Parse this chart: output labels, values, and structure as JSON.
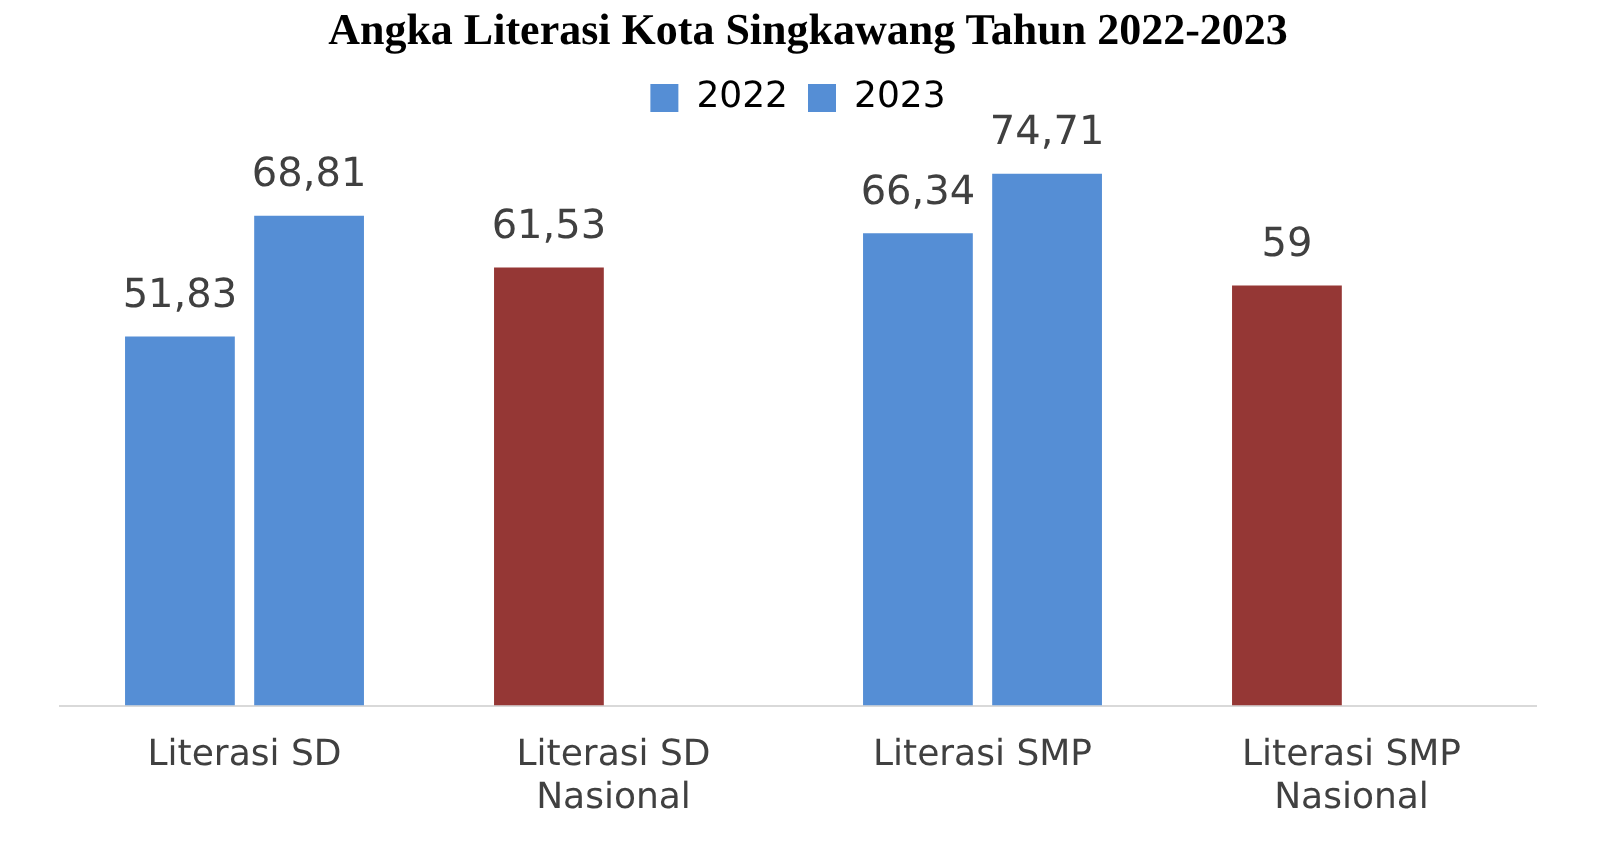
{
  "chart_data": {
    "type": "bar",
    "title": "Angka Literasi Kota Singkawang Tahun 2022-2023",
    "categories": [
      "Literasi SD",
      "Literasi SD Nasional",
      "Literasi SMP",
      "Literasi SMP Nasional"
    ],
    "series": [
      {
        "name": "2022",
        "color": "#558ed5",
        "colors": [
          "#558ed5",
          "#953735",
          "#558ed5",
          "#953735"
        ],
        "values": [
          51.83,
          61.53,
          66.34,
          59
        ],
        "value_labels": [
          "51,83",
          "61,53",
          "66,34",
          "59"
        ]
      },
      {
        "name": "2023",
        "color": "#558ed5",
        "values": [
          68.81,
          null,
          74.71,
          null
        ],
        "value_labels": [
          "68,81",
          null,
          "74,71",
          null
        ]
      }
    ],
    "grid": false,
    "legend": "top"
  }
}
